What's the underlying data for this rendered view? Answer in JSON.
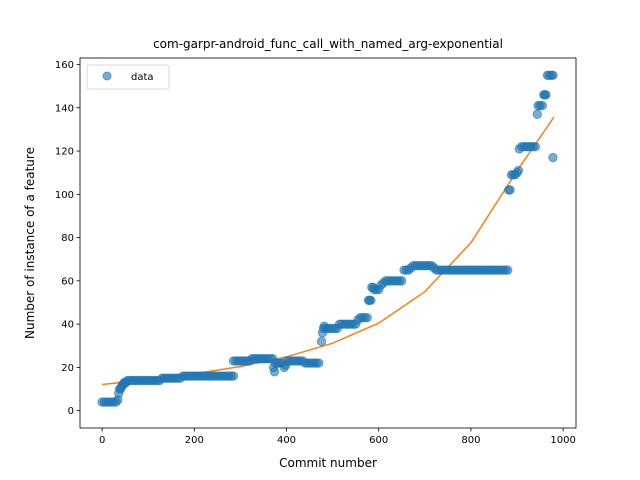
{
  "chart_data": {
    "type": "scatter",
    "title": "com-garpr-android_func_call_with_named_arg-exponential",
    "xlabel": "Commit number",
    "ylabel": "Number of instance of a feature",
    "xlim": [
      -48,
      1028
    ],
    "ylim": [
      -8,
      163
    ],
    "xticks": [
      0,
      200,
      400,
      600,
      800,
      1000
    ],
    "yticks": [
      0,
      20,
      40,
      60,
      80,
      100,
      120,
      140,
      160
    ],
    "grid": false,
    "legend": {
      "placement": "upper-left",
      "entries": [
        "data"
      ]
    },
    "colors": {
      "data": "#1f77b4",
      "fit": "#ff7f0e"
    },
    "series": [
      {
        "name": "data",
        "kind": "scatter",
        "points": [
          [
            0,
            4
          ],
          [
            5,
            4
          ],
          [
            10,
            4
          ],
          [
            15,
            4
          ],
          [
            20,
            4
          ],
          [
            25,
            4
          ],
          [
            30,
            4
          ],
          [
            34,
            5
          ],
          [
            36,
            8
          ],
          [
            38,
            10
          ],
          [
            40,
            10
          ],
          [
            42,
            11
          ],
          [
            44,
            12
          ],
          [
            46,
            12
          ],
          [
            48,
            13
          ],
          [
            50,
            13
          ],
          [
            52,
            13
          ],
          [
            55,
            14
          ],
          [
            60,
            14
          ],
          [
            65,
            14
          ],
          [
            70,
            14
          ],
          [
            75,
            14
          ],
          [
            80,
            14
          ],
          [
            85,
            14
          ],
          [
            90,
            14
          ],
          [
            95,
            14
          ],
          [
            100,
            14
          ],
          [
            105,
            14
          ],
          [
            110,
            14
          ],
          [
            115,
            14
          ],
          [
            120,
            14
          ],
          [
            125,
            14
          ],
          [
            130,
            15
          ],
          [
            135,
            15
          ],
          [
            140,
            15
          ],
          [
            145,
            15
          ],
          [
            150,
            15
          ],
          [
            155,
            15
          ],
          [
            160,
            15
          ],
          [
            165,
            15
          ],
          [
            170,
            15
          ],
          [
            175,
            16
          ],
          [
            180,
            16
          ],
          [
            185,
            16
          ],
          [
            190,
            16
          ],
          [
            195,
            16
          ],
          [
            200,
            16
          ],
          [
            205,
            16
          ],
          [
            210,
            16
          ],
          [
            215,
            16
          ],
          [
            220,
            16
          ],
          [
            225,
            16
          ],
          [
            230,
            16
          ],
          [
            235,
            16
          ],
          [
            240,
            16
          ],
          [
            245,
            16
          ],
          [
            250,
            16
          ],
          [
            255,
            16
          ],
          [
            260,
            16
          ],
          [
            265,
            16
          ],
          [
            270,
            16
          ],
          [
            275,
            16
          ],
          [
            280,
            16
          ],
          [
            285,
            16
          ],
          [
            285,
            23
          ],
          [
            290,
            23
          ],
          [
            295,
            23
          ],
          [
            300,
            23
          ],
          [
            305,
            23
          ],
          [
            310,
            23
          ],
          [
            315,
            23
          ],
          [
            320,
            23
          ],
          [
            325,
            24
          ],
          [
            330,
            24
          ],
          [
            335,
            24
          ],
          [
            340,
            24
          ],
          [
            345,
            24
          ],
          [
            350,
            24
          ],
          [
            355,
            24
          ],
          [
            360,
            24
          ],
          [
            365,
            24
          ],
          [
            370,
            24
          ],
          [
            372,
            20
          ],
          [
            374,
            18
          ],
          [
            376,
            22
          ],
          [
            380,
            22
          ],
          [
            385,
            22
          ],
          [
            390,
            22
          ],
          [
            395,
            20
          ],
          [
            398,
            21
          ],
          [
            400,
            23
          ],
          [
            405,
            23
          ],
          [
            410,
            23
          ],
          [
            415,
            23
          ],
          [
            420,
            23
          ],
          [
            425,
            23
          ],
          [
            430,
            23
          ],
          [
            435,
            23
          ],
          [
            440,
            22
          ],
          [
            445,
            22
          ],
          [
            450,
            22
          ],
          [
            455,
            22
          ],
          [
            460,
            22
          ],
          [
            465,
            22
          ],
          [
            470,
            22
          ],
          [
            476,
            32
          ],
          [
            478,
            36
          ],
          [
            480,
            38
          ],
          [
            482,
            39
          ],
          [
            485,
            38
          ],
          [
            490,
            38
          ],
          [
            495,
            38
          ],
          [
            500,
            38
          ],
          [
            505,
            38
          ],
          [
            510,
            38
          ],
          [
            515,
            40
          ],
          [
            520,
            40
          ],
          [
            525,
            40
          ],
          [
            530,
            40
          ],
          [
            535,
            40
          ],
          [
            540,
            40
          ],
          [
            545,
            40
          ],
          [
            550,
            40
          ],
          [
            555,
            42
          ],
          [
            560,
            43
          ],
          [
            565,
            43
          ],
          [
            570,
            43
          ],
          [
            575,
            43
          ],
          [
            578,
            51
          ],
          [
            580,
            51
          ],
          [
            583,
            51
          ],
          [
            585,
            57
          ],
          [
            588,
            57
          ],
          [
            590,
            56
          ],
          [
            595,
            56
          ],
          [
            600,
            56
          ],
          [
            605,
            58
          ],
          [
            610,
            59
          ],
          [
            615,
            60
          ],
          [
            620,
            60
          ],
          [
            625,
            60
          ],
          [
            630,
            60
          ],
          [
            635,
            60
          ],
          [
            640,
            60
          ],
          [
            645,
            60
          ],
          [
            650,
            60
          ],
          [
            655,
            65
          ],
          [
            660,
            65
          ],
          [
            665,
            65
          ],
          [
            670,
            66
          ],
          [
            675,
            67
          ],
          [
            680,
            67
          ],
          [
            685,
            67
          ],
          [
            690,
            67
          ],
          [
            695,
            67
          ],
          [
            700,
            67
          ],
          [
            705,
            67
          ],
          [
            710,
            67
          ],
          [
            715,
            67
          ],
          [
            720,
            66
          ],
          [
            725,
            65
          ],
          [
            730,
            65
          ],
          [
            735,
            65
          ],
          [
            740,
            65
          ],
          [
            745,
            65
          ],
          [
            750,
            65
          ],
          [
            755,
            65
          ],
          [
            760,
            65
          ],
          [
            765,
            65
          ],
          [
            770,
            65
          ],
          [
            775,
            65
          ],
          [
            780,
            65
          ],
          [
            785,
            65
          ],
          [
            790,
            65
          ],
          [
            795,
            65
          ],
          [
            800,
            65
          ],
          [
            805,
            65
          ],
          [
            810,
            65
          ],
          [
            815,
            65
          ],
          [
            820,
            65
          ],
          [
            825,
            65
          ],
          [
            830,
            65
          ],
          [
            835,
            65
          ],
          [
            840,
            65
          ],
          [
            845,
            65
          ],
          [
            850,
            65
          ],
          [
            855,
            65
          ],
          [
            860,
            65
          ],
          [
            865,
            65
          ],
          [
            870,
            65
          ],
          [
            875,
            65
          ],
          [
            880,
            65
          ],
          [
            882,
            102
          ],
          [
            885,
            102
          ],
          [
            888,
            109
          ],
          [
            892,
            109
          ],
          [
            896,
            109
          ],
          [
            900,
            110
          ],
          [
            903,
            111
          ],
          [
            905,
            121
          ],
          [
            910,
            122
          ],
          [
            915,
            122
          ],
          [
            920,
            122
          ],
          [
            925,
            122
          ],
          [
            930,
            122
          ],
          [
            935,
            122
          ],
          [
            940,
            122
          ],
          [
            944,
            137
          ],
          [
            946,
            141
          ],
          [
            950,
            141
          ],
          [
            955,
            141
          ],
          [
            958,
            146
          ],
          [
            960,
            146
          ],
          [
            963,
            146
          ],
          [
            966,
            155
          ],
          [
            970,
            155
          ],
          [
            975,
            155
          ],
          [
            978,
            155
          ],
          [
            978,
            117
          ]
        ]
      },
      {
        "name": "",
        "kind": "line",
        "points": [
          [
            0,
            12.1
          ],
          [
            100,
            14.4
          ],
          [
            200,
            17.1
          ],
          [
            300,
            20.4
          ],
          [
            400,
            24.9
          ],
          [
            500,
            31.2
          ],
          [
            600,
            40.5
          ],
          [
            700,
            55
          ],
          [
            800,
            77.6
          ],
          [
            900,
            110.8
          ],
          [
            980,
            135.7
          ]
        ]
      }
    ]
  }
}
